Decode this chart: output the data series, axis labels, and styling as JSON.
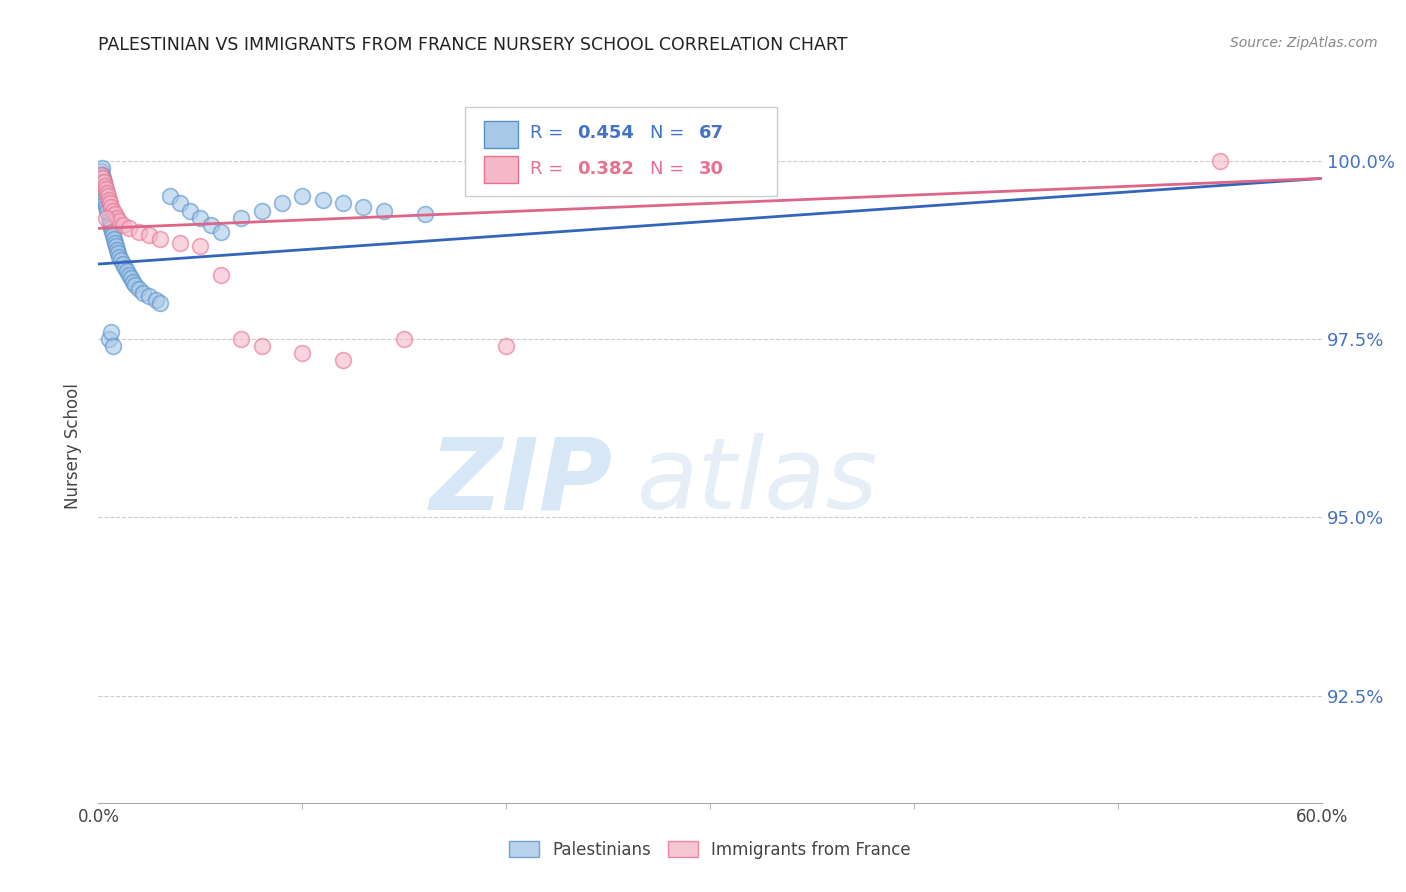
{
  "title": "PALESTINIAN VS IMMIGRANTS FROM FRANCE NURSERY SCHOOL CORRELATION CHART",
  "source": "Source: ZipAtlas.com",
  "ylabel": "Nursery School",
  "xlim": [
    0.0,
    60.0
  ],
  "ylim": [
    91.0,
    101.0
  ],
  "xticks": [
    0.0,
    60.0
  ],
  "yticks": [
    92.5,
    95.0,
    97.5,
    100.0
  ],
  "blue_color": "#a8c8e8",
  "pink_color": "#f4b8c8",
  "blue_edge_color": "#5590c8",
  "pink_edge_color": "#e87090",
  "blue_line_color": "#3366bb",
  "pink_line_color": "#dd6688",
  "r_blue": 0.454,
  "n_blue": 67,
  "r_pink": 0.382,
  "n_pink": 30,
  "watermark_zip": "ZIP",
  "watermark_atlas": "atlas",
  "legend_label_blue": "Palestinians",
  "legend_label_pink": "Immigrants from France",
  "blue_trend": [
    98.55,
    99.75
  ],
  "pink_trend": [
    99.05,
    99.75
  ],
  "blue_scatter_x": [
    0.15,
    0.18,
    0.2,
    0.22,
    0.25,
    0.28,
    0.3,
    0.32,
    0.35,
    0.38,
    0.4,
    0.42,
    0.45,
    0.48,
    0.5,
    0.52,
    0.55,
    0.58,
    0.6,
    0.65,
    0.7,
    0.75,
    0.8,
    0.85,
    0.9,
    0.95,
    1.0,
    1.1,
    1.2,
    1.3,
    1.4,
    1.5,
    1.6,
    1.7,
    1.8,
    2.0,
    2.2,
    2.5,
    2.8,
    3.0,
    3.5,
    4.0,
    4.5,
    5.0,
    5.5,
    6.0,
    7.0,
    8.0,
    9.0,
    10.0,
    11.0,
    12.0,
    13.0,
    14.0,
    16.0,
    0.1,
    0.12,
    0.15,
    0.18,
    0.2,
    0.25,
    0.3,
    0.35,
    0.4,
    0.5,
    0.6,
    0.7
  ],
  "blue_scatter_y": [
    99.85,
    99.9,
    99.8,
    99.75,
    99.7,
    99.65,
    99.6,
    99.55,
    99.5,
    99.45,
    99.4,
    99.38,
    99.35,
    99.3,
    99.25,
    99.2,
    99.15,
    99.1,
    99.05,
    99.0,
    98.95,
    98.9,
    98.85,
    98.8,
    98.75,
    98.7,
    98.65,
    98.6,
    98.55,
    98.5,
    98.45,
    98.4,
    98.35,
    98.3,
    98.25,
    98.2,
    98.15,
    98.1,
    98.05,
    98.0,
    99.5,
    99.4,
    99.3,
    99.2,
    99.1,
    99.0,
    99.2,
    99.3,
    99.4,
    99.5,
    99.45,
    99.4,
    99.35,
    99.3,
    99.25,
    99.7,
    99.65,
    99.6,
    99.55,
    99.5,
    99.45,
    99.4,
    99.35,
    99.3,
    97.5,
    97.6,
    97.4
  ],
  "pink_scatter_x": [
    0.15,
    0.2,
    0.25,
    0.3,
    0.35,
    0.4,
    0.45,
    0.5,
    0.55,
    0.6,
    0.7,
    0.8,
    0.9,
    1.0,
    1.2,
    1.5,
    2.0,
    2.5,
    3.0,
    4.0,
    5.0,
    6.0,
    7.0,
    8.0,
    10.0,
    12.0,
    15.0,
    20.0,
    55.0,
    0.35
  ],
  "pink_scatter_y": [
    99.8,
    99.75,
    99.7,
    99.65,
    99.6,
    99.55,
    99.5,
    99.45,
    99.4,
    99.35,
    99.3,
    99.25,
    99.2,
    99.15,
    99.1,
    99.05,
    99.0,
    98.95,
    98.9,
    98.85,
    98.8,
    98.4,
    97.5,
    97.4,
    97.3,
    97.2,
    97.5,
    97.4,
    100.0,
    99.2
  ]
}
